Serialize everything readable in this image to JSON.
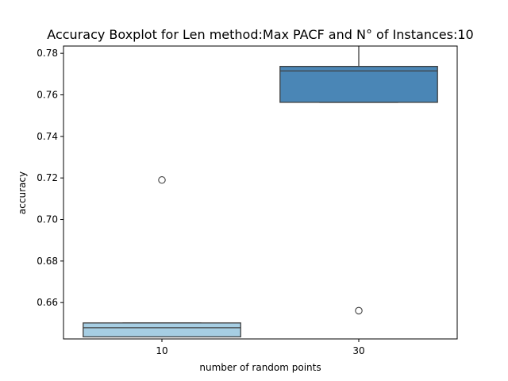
{
  "chart_data": {
    "type": "boxplot",
    "title": "Accuracy Boxplot for Len method:Max PACF and N° of Instances:10",
    "xlabel": "number of random points",
    "ylabel": "accuracy",
    "categories": [
      "10",
      "30"
    ],
    "ylim": [
      0.6425,
      0.7835
    ],
    "yticks": [
      "0.66",
      "0.68",
      "0.70",
      "0.72",
      "0.74",
      "0.76",
      "0.78"
    ],
    "ytick_values": [
      0.66,
      0.68,
      0.7,
      0.72,
      0.74,
      0.76,
      0.78
    ],
    "grid": false,
    "boxes": [
      {
        "category": "10",
        "whisker_low": 0.6435,
        "q1": 0.6435,
        "median": 0.6479,
        "q3": 0.6502,
        "whisker_high": 0.6502,
        "outliers": [
          0.719
        ],
        "color": "#a6cee3"
      },
      {
        "category": "30",
        "whisker_low": 0.7564,
        "q1": 0.7564,
        "median": 0.7715,
        "q3": 0.7737,
        "whisker_high": 0.7837,
        "outliers": [
          0.6561
        ],
        "color": "#4a86b6"
      }
    ]
  }
}
